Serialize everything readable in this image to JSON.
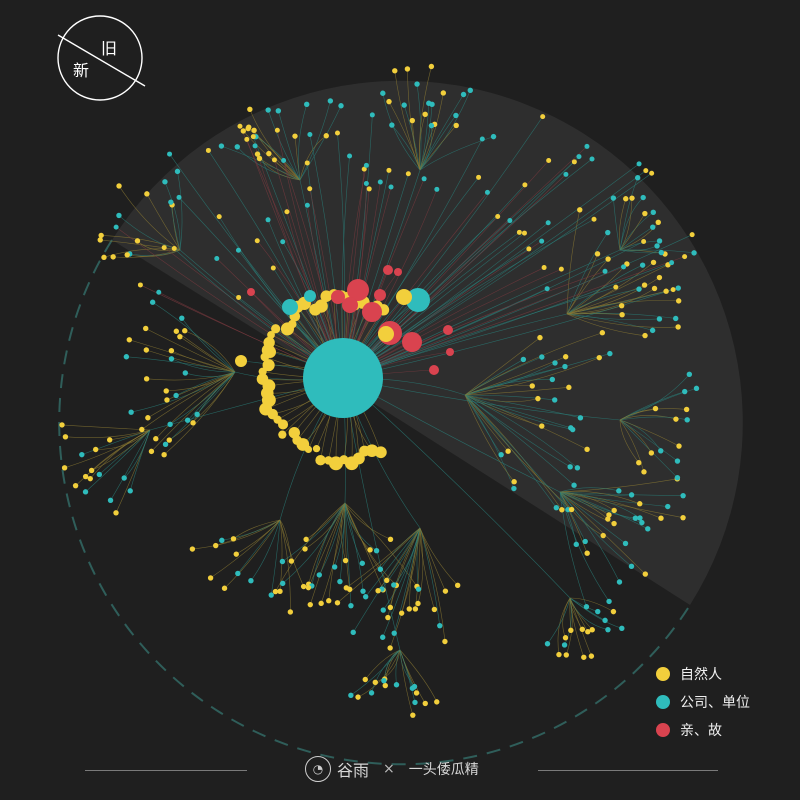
{
  "corner": {
    "new_label": "新",
    "old_label": "旧"
  },
  "legend": [
    {
      "label": "自然人",
      "color": "#f2cf3c"
    },
    {
      "label": "公司、单位",
      "color": "#2fbcbc"
    },
    {
      "label": "亲、故",
      "color": "#d9434f"
    }
  ],
  "footer": {
    "brand": "谷雨",
    "times": "×",
    "author": "一头倭瓜精"
  },
  "colors": {
    "background": "#1f1f1f",
    "sector": "#2e2e2e",
    "dashed_ring": "#2f5e5a",
    "link_teal": "#2a7d78",
    "link_gold": "#8b7a33",
    "link_red": "#7a3a3f"
  }
}
